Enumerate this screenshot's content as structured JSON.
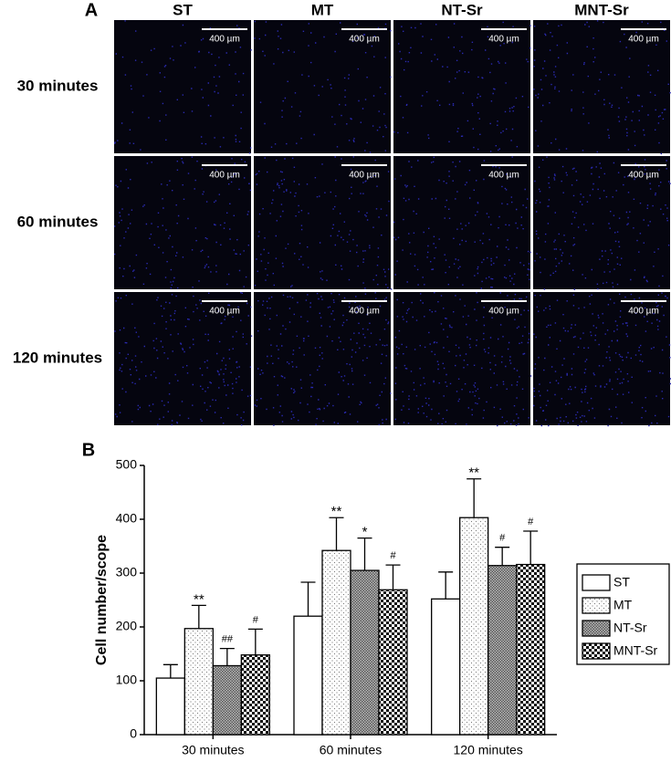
{
  "panel_a": {
    "label": "A",
    "columns": [
      "ST",
      "MT",
      "NT-Sr",
      "MNT-Sr"
    ],
    "rows": [
      "30 minutes",
      "60 minutes",
      "120 minutes"
    ],
    "scale_bar": "400 µm"
  },
  "chart_data": {
    "type": "bar",
    "panel_label": "B",
    "ylabel": "Cell number/scope",
    "categories": [
      "30 minutes",
      "60 minutes",
      "120 minutes"
    ],
    "series": [
      {
        "name": "ST",
        "values": [
          105,
          220,
          252
        ],
        "errors": [
          25,
          63,
          50
        ],
        "annotations": [
          null,
          null,
          null
        ]
      },
      {
        "name": "MT",
        "values": [
          197,
          342,
          403
        ],
        "errors": [
          43,
          61,
          72
        ],
        "annotations": [
          "**",
          "**",
          "**"
        ]
      },
      {
        "name": "NT-Sr",
        "values": [
          128,
          305,
          314
        ],
        "errors": [
          32,
          60,
          34
        ],
        "annotations": [
          "##",
          "*",
          "#"
        ]
      },
      {
        "name": "MNT-Sr",
        "values": [
          148,
          269,
          316
        ],
        "errors": [
          48,
          46,
          62
        ],
        "annotations": [
          "#",
          "#",
          "#"
        ]
      }
    ],
    "ylim": [
      0,
      500
    ],
    "yticks": [
      0,
      100,
      200,
      300,
      400,
      500
    ],
    "legend": "right"
  }
}
